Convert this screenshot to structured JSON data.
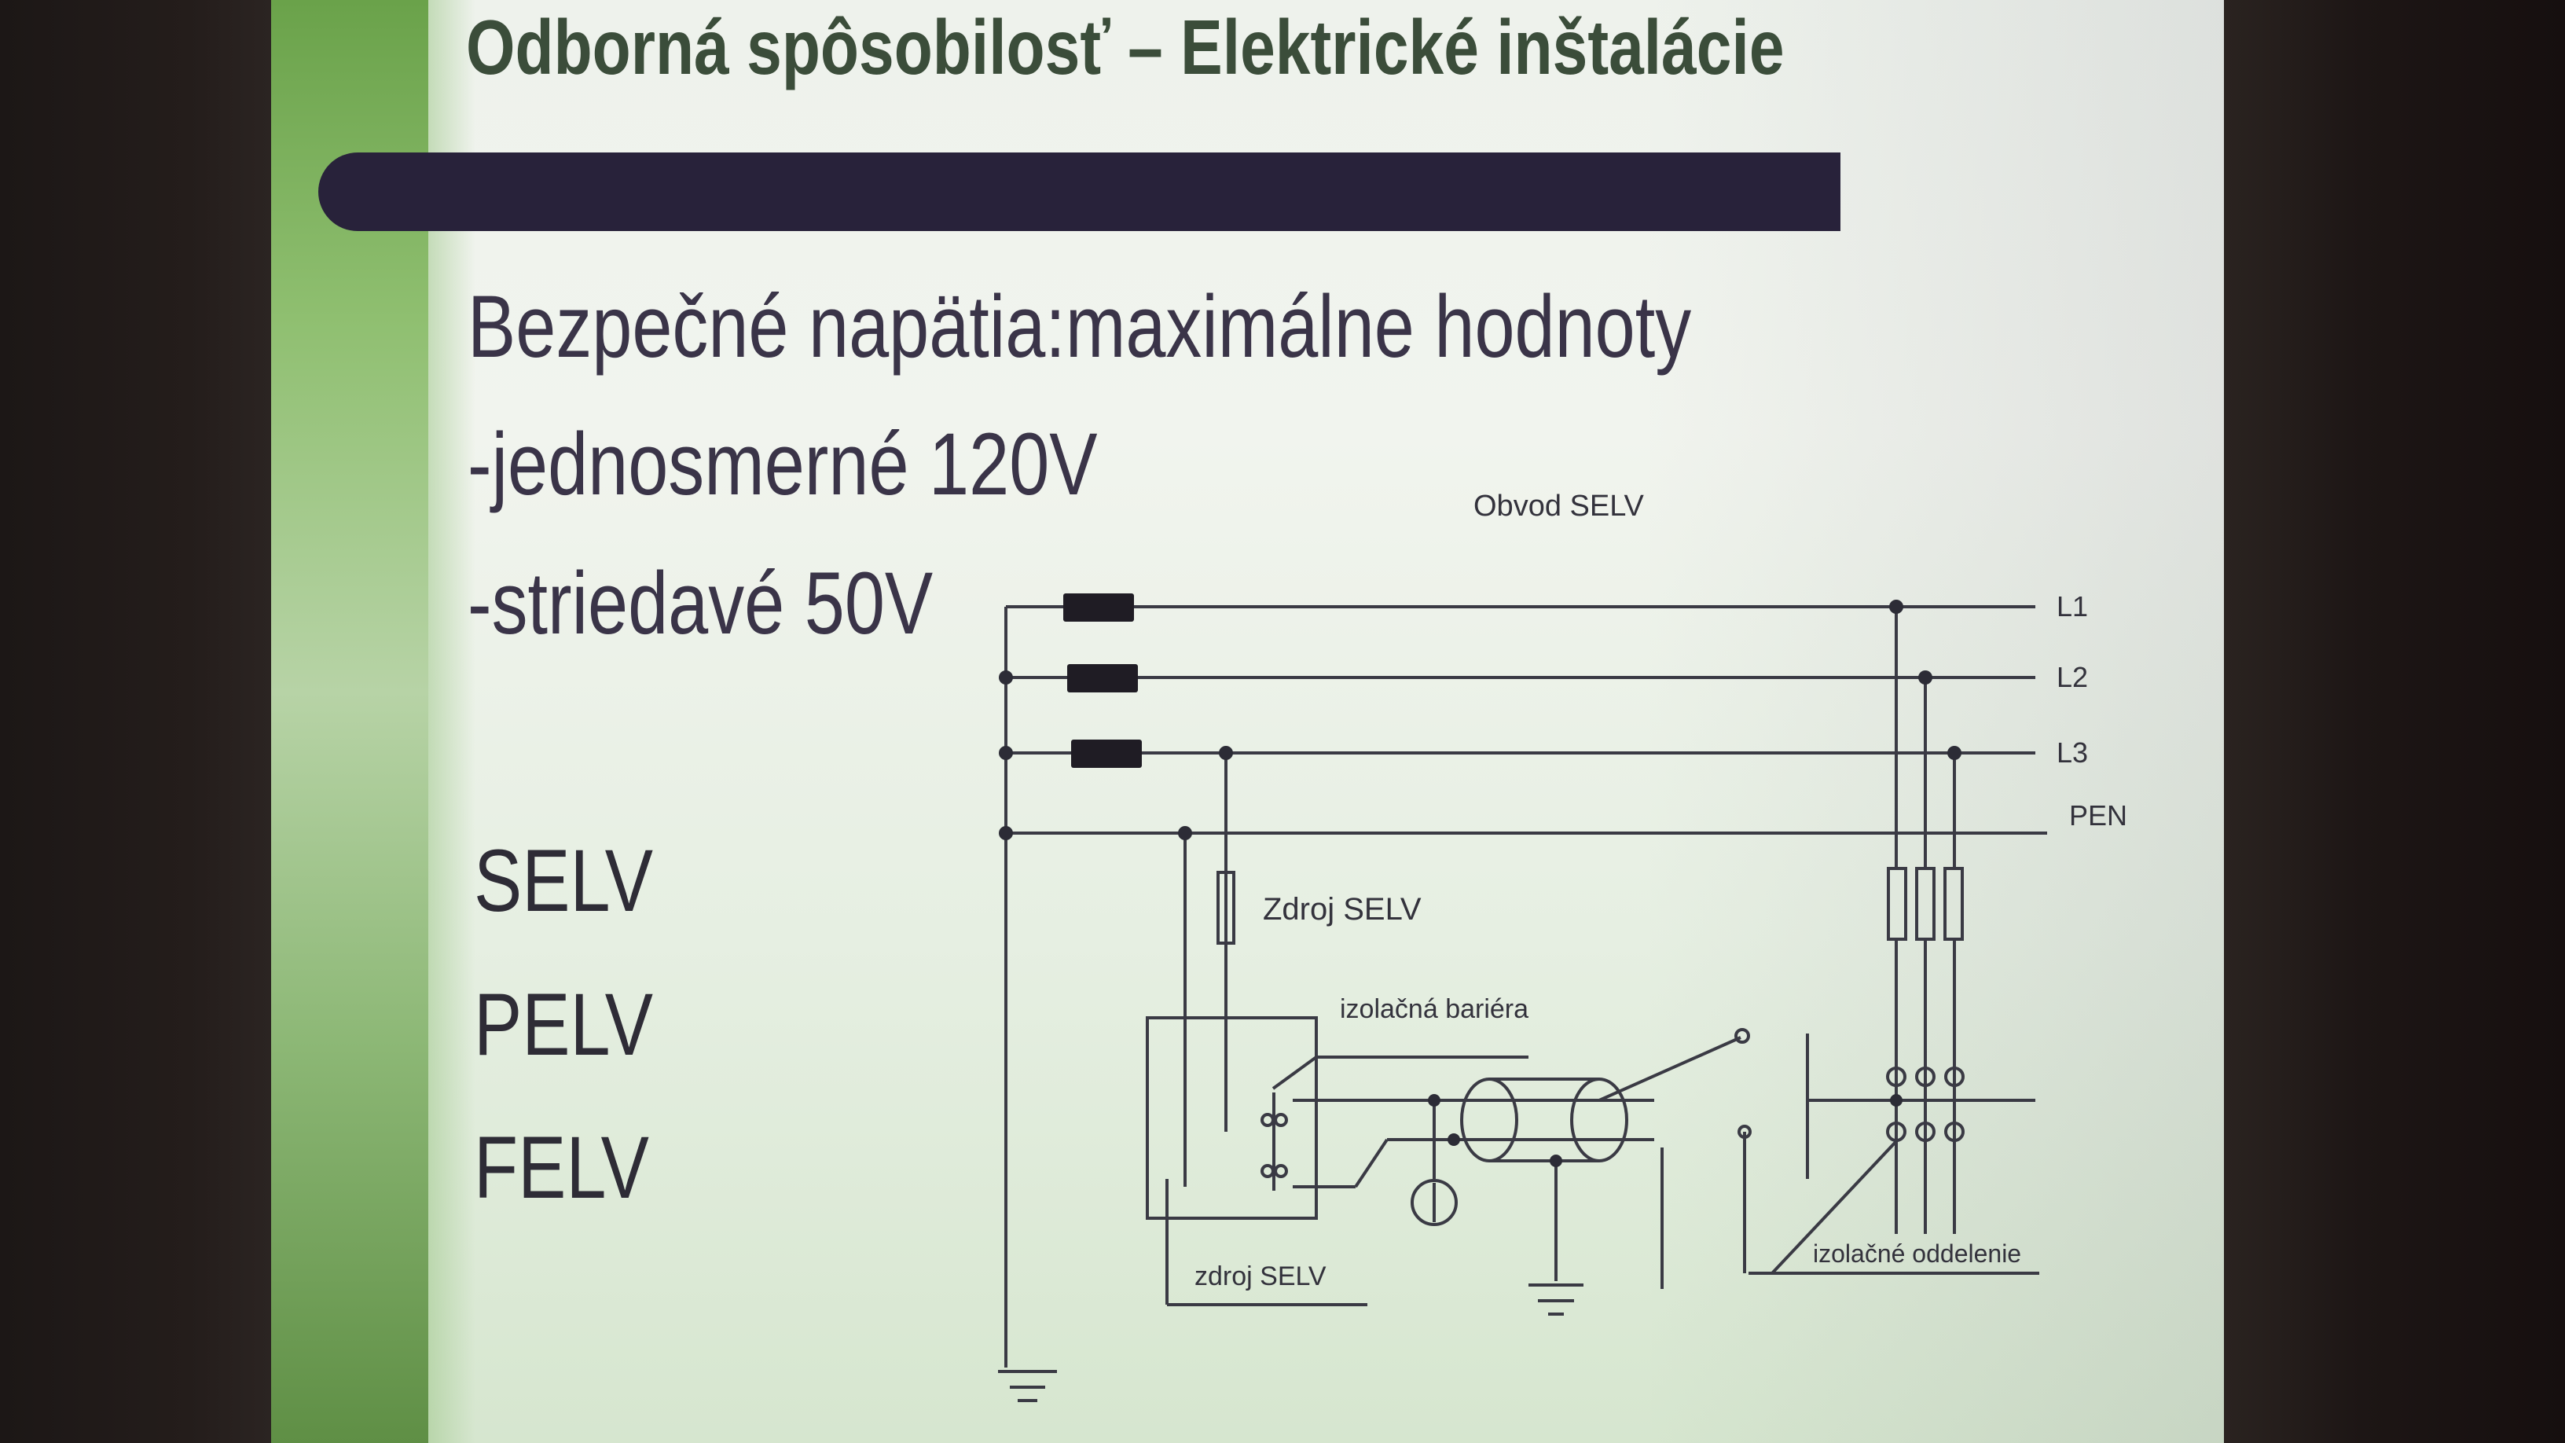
{
  "slide": {
    "title": "Odborná spôsobilosť – Elektrické inštalácie",
    "heading": "Bezpečné napätia:maximálne hodnoty",
    "line_dc": "-jednosmerné 120V",
    "line_ac": "-striedavé 50V",
    "systems": [
      "SELV",
      "PELV",
      "FELV"
    ]
  },
  "diagram": {
    "circuit_label": "Obvod SELV",
    "phase_labels": [
      "L1",
      "L2",
      "L3"
    ],
    "pen_label": "PEN",
    "source_label": "Zdroj SELV",
    "barrier_label": "izolačná bariéra",
    "source_label_lower": "zdroj SELV",
    "separation_label": "izolačné oddelenie"
  },
  "colors": {
    "green_band": "#8fbf70",
    "title_text": "#3b4d3a",
    "dark_bar": "#28223a",
    "line_color": "#3a3a44"
  }
}
